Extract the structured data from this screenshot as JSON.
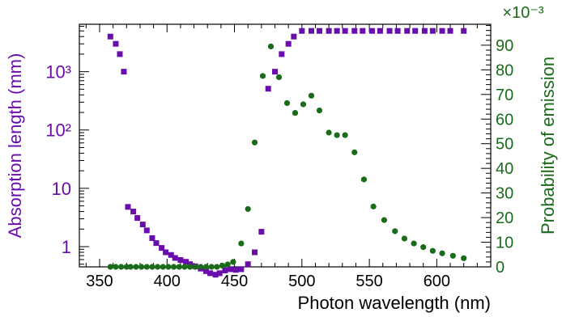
{
  "chart_data": {
    "type": "scatter",
    "xlabel": "Photon wavelength (nm)",
    "xlim": [
      335,
      640
    ],
    "x_ticks": [
      {
        "value": 350,
        "label": "350"
      },
      {
        "value": 400,
        "label": "400"
      },
      {
        "value": 450,
        "label": "450"
      },
      {
        "value": 500,
        "label": "500"
      },
      {
        "value": 550,
        "label": "550"
      },
      {
        "value": 600,
        "label": "600"
      }
    ],
    "left_axis": {
      "label": "Absorption length (mm)",
      "scale": "log",
      "ylim": [
        0.45,
        6500
      ],
      "color": "#6a0dad",
      "ticks": [
        {
          "value": 1,
          "label": "1"
        },
        {
          "value": 10,
          "label": "10"
        },
        {
          "value": 100,
          "label": "10²"
        },
        {
          "value": 1000,
          "label": "10³"
        }
      ]
    },
    "right_axis": {
      "label": "Probability of emission",
      "scale": "linear",
      "multiplier_label": "×10⁻³",
      "ylim": [
        0,
        0.0985
      ],
      "color": "#1a6b1a",
      "ticks": [
        {
          "value": 0,
          "label": "0"
        },
        {
          "value": 0.01,
          "label": "10"
        },
        {
          "value": 0.02,
          "label": "20"
        },
        {
          "value": 0.03,
          "label": "30"
        },
        {
          "value": 0.04,
          "label": "40"
        },
        {
          "value": 0.05,
          "label": "50"
        },
        {
          "value": 0.06,
          "label": "60"
        },
        {
          "value": 0.07,
          "label": "70"
        },
        {
          "value": 0.08,
          "label": "80"
        },
        {
          "value": 0.09,
          "label": "90"
        }
      ]
    },
    "grid": false,
    "series": [
      {
        "axis": "left",
        "marker": "square",
        "color": "#6a0dad",
        "points": [
          [
            358,
            4000
          ],
          [
            362,
            3000
          ],
          [
            365,
            2000
          ],
          [
            368,
            1000
          ],
          [
            371,
            4.8
          ],
          [
            375,
            4.0
          ],
          [
            378,
            3.1
          ],
          [
            382,
            2.4
          ],
          [
            385,
            1.9
          ],
          [
            389,
            1.4
          ],
          [
            392,
            1.15
          ],
          [
            396,
            0.95
          ],
          [
            399,
            0.8
          ],
          [
            403,
            0.72
          ],
          [
            406,
            0.64
          ],
          [
            410,
            0.59
          ],
          [
            414,
            0.55
          ],
          [
            417,
            0.5
          ],
          [
            421,
            0.46
          ],
          [
            425,
            0.42
          ],
          [
            429,
            0.38
          ],
          [
            432,
            0.35
          ],
          [
            436,
            0.33
          ],
          [
            439,
            0.35
          ],
          [
            443,
            0.39
          ],
          [
            447,
            0.41
          ],
          [
            451,
            0.4
          ],
          [
            455,
            0.41
          ],
          [
            460,
            0.5
          ],
          [
            465,
            0.8
          ],
          [
            470,
            1.8
          ],
          [
            475,
            510
          ],
          [
            480,
            1000
          ],
          [
            485,
            2000
          ],
          [
            490,
            3000
          ],
          [
            494,
            4000
          ],
          [
            500,
            5000
          ],
          [
            507,
            5000
          ],
          [
            513,
            5000
          ],
          [
            520,
            5000
          ],
          [
            526,
            5000
          ],
          [
            532,
            5000
          ],
          [
            539,
            5000
          ],
          [
            545,
            5000
          ],
          [
            552,
            5000
          ],
          [
            558,
            5000
          ],
          [
            565,
            5000
          ],
          [
            571,
            5000
          ],
          [
            578,
            5000
          ],
          [
            584,
            5000
          ],
          [
            591,
            5000
          ],
          [
            597,
            5000
          ],
          [
            604,
            5000
          ],
          [
            610,
            5000
          ],
          [
            620,
            5000
          ]
        ]
      },
      {
        "axis": "right",
        "marker": "circle",
        "color": "#1a6b1a",
        "points": [
          [
            358,
            0.0
          ],
          [
            362,
            0.0
          ],
          [
            366,
            0.0
          ],
          [
            370,
            0.0
          ],
          [
            373,
            0.0
          ],
          [
            377,
            0.0
          ],
          [
            381,
            0.0
          ],
          [
            385,
            0.0
          ],
          [
            389,
            0.0
          ],
          [
            393,
            0.0
          ],
          [
            397,
            0.0
          ],
          [
            401,
            0.0
          ],
          [
            405,
            0.0
          ],
          [
            409,
            0.0
          ],
          [
            413,
            0.0
          ],
          [
            417,
            0.0
          ],
          [
            421,
            0.0
          ],
          [
            425,
            0.0
          ],
          [
            429,
            0.0
          ],
          [
            433,
            0.0
          ],
          [
            437,
            0.0
          ],
          [
            441,
            0.0005
          ],
          [
            445,
            0.001
          ],
          [
            449,
            0.002
          ],
          [
            455,
            0.0095
          ],
          [
            460,
            0.0235
          ],
          [
            465,
            0.0505
          ],
          [
            471,
            0.0775
          ],
          [
            477,
            0.0895
          ],
          [
            483,
            0.077
          ],
          [
            489,
            0.0665
          ],
          [
            495,
            0.0625
          ],
          [
            501,
            0.066
          ],
          [
            507,
            0.0695
          ],
          [
            513,
            0.0635
          ],
          [
            520,
            0.0545
          ],
          [
            526,
            0.0535
          ],
          [
            532,
            0.0535
          ],
          [
            539,
            0.0465
          ],
          [
            546,
            0.0355
          ],
          [
            553,
            0.0245
          ],
          [
            561,
            0.019
          ],
          [
            569,
            0.0145
          ],
          [
            576,
            0.0115
          ],
          [
            583,
            0.0095
          ],
          [
            590,
            0.008
          ],
          [
            597,
            0.0065
          ],
          [
            604,
            0.0055
          ],
          [
            612,
            0.0045
          ],
          [
            620,
            0.0035
          ]
        ]
      }
    ]
  }
}
